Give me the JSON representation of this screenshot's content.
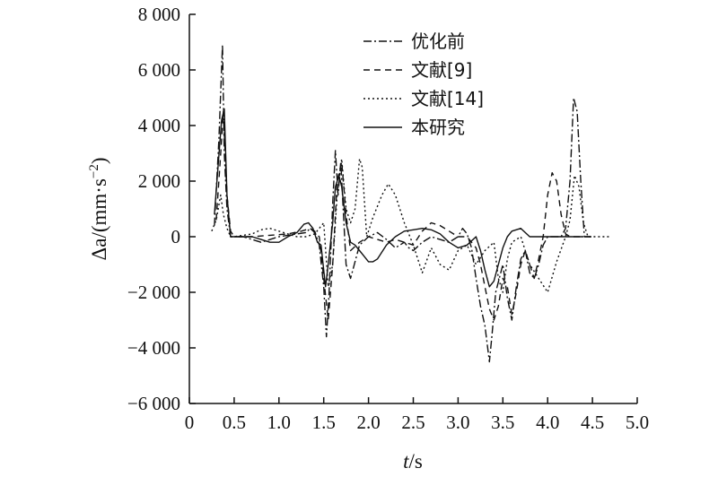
{
  "chart_data": {
    "type": "line",
    "xlabel_italic": "t",
    "xlabel_unit": "/s",
    "ylabel_symbol": "Δa",
    "ylabel_unit": "/(mm·s",
    "ylabel_exp": "−2",
    "ylabel_close": ")",
    "xlim": [
      0,
      5.0
    ],
    "ylim": [
      -6000,
      8000
    ],
    "xticks": [
      0,
      0.5,
      1.0,
      1.5,
      2.0,
      2.5,
      3.0,
      3.5,
      4.0,
      4.5,
      5.0
    ],
    "xtick_labels": [
      "0",
      "0.5",
      "1.0",
      "1.5",
      "2.0",
      "2.5",
      "3.0",
      "3.5",
      "4.0",
      "4.5",
      "5.0"
    ],
    "yticks": [
      -6000,
      -4000,
      -2000,
      0,
      2000,
      4000,
      6000,
      8000
    ],
    "ytick_labels": [
      "−6 000",
      "−4 000",
      "−2 000",
      "0",
      "2 000",
      "4 000",
      "6 000",
      "8 000"
    ],
    "grid": false,
    "legend_position": "top-right",
    "series": [
      {
        "name": "优化前",
        "dash": "9,3,2,3",
        "x": [
          0.28,
          0.33,
          0.37,
          0.39,
          0.42,
          0.46,
          0.5,
          0.6,
          0.8,
          1.0,
          1.1,
          1.2,
          1.3,
          1.35,
          1.4,
          1.45,
          1.5,
          1.53,
          1.56,
          1.6,
          1.63,
          1.66,
          1.69,
          1.72,
          1.75,
          1.8,
          1.9,
          2.0,
          2.1,
          2.2,
          2.3,
          2.4,
          2.45,
          2.5,
          2.6,
          2.7,
          2.8,
          2.9,
          3.0,
          3.05,
          3.1,
          3.15,
          3.2,
          3.25,
          3.3,
          3.35,
          3.38,
          3.42,
          3.46,
          3.5,
          3.55,
          3.6,
          3.65,
          3.7,
          3.75,
          3.8,
          3.85,
          3.9,
          3.95,
          4.0,
          4.05,
          4.1,
          4.15,
          4.2,
          4.25,
          4.29,
          4.33,
          4.37,
          4.41,
          4.45,
          4.5
        ],
        "y": [
          400,
          3500,
          6900,
          3000,
          1000,
          0,
          0,
          0,
          -200,
          0,
          50,
          100,
          150,
          300,
          200,
          -300,
          -1800,
          -3600,
          -2000,
          1200,
          3100,
          1500,
          2700,
          800,
          -1000,
          -1500,
          -300,
          0,
          150,
          -100,
          -400,
          -200,
          -400,
          -500,
          -200,
          0,
          -100,
          -200,
          0,
          300,
          100,
          -400,
          -1500,
          -2500,
          -3200,
          -4500,
          -3500,
          -2000,
          -1500,
          -1000,
          -2200,
          -3000,
          -1800,
          -800,
          -500,
          -1300,
          -1500,
          -1000,
          -300,
          0,
          0,
          0,
          0,
          300,
          2000,
          5000,
          4500,
          2000,
          0,
          0,
          0
        ]
      },
      {
        "name": "文献[9]",
        "dash": "7,5",
        "x": [
          0.3,
          0.34,
          0.38,
          0.42,
          0.46,
          0.5,
          0.7,
          0.9,
          1.1,
          1.25,
          1.35,
          1.45,
          1.5,
          1.55,
          1.6,
          1.65,
          1.7,
          1.75,
          1.8,
          1.9,
          2.0,
          2.1,
          2.2,
          2.3,
          2.4,
          2.5,
          2.6,
          2.7,
          2.8,
          2.9,
          3.0,
          3.1,
          3.2,
          3.25,
          3.3,
          3.35,
          3.4,
          3.45,
          3.5,
          3.55,
          3.6,
          3.65,
          3.7,
          3.75,
          3.8,
          3.85,
          3.9,
          3.95,
          4.0,
          4.05,
          4.1,
          4.15,
          4.2,
          4.25,
          4.3,
          4.35,
          4.4,
          4.45,
          4.5
        ],
        "y": [
          600,
          2500,
          4500,
          1500,
          200,
          0,
          0,
          50,
          100,
          200,
          300,
          0,
          -1500,
          -3000,
          -1000,
          2000,
          2700,
          800,
          -500,
          -200,
          0,
          -100,
          -200,
          -100,
          -200,
          -300,
          200,
          500,
          400,
          200,
          0,
          0,
          -400,
          -1000,
          -1800,
          -2600,
          -3000,
          -2500,
          -1500,
          -1800,
          -2800,
          -2000,
          -1000,
          -500,
          -1000,
          -1500,
          -800,
          0,
          1500,
          2300,
          2000,
          800,
          100,
          0,
          0,
          0,
          0,
          0,
          0
        ]
      },
      {
        "name": "文献[14]",
        "dash": "2,3",
        "x": [
          0.25,
          0.3,
          0.35,
          0.38,
          0.42,
          0.46,
          0.5,
          0.7,
          0.8,
          0.9,
          1.0,
          1.1,
          1.2,
          1.3,
          1.4,
          1.45,
          1.5,
          1.55,
          1.6,
          1.65,
          1.7,
          1.75,
          1.8,
          1.85,
          1.9,
          1.93,
          1.98,
          2.05,
          2.15,
          2.22,
          2.3,
          2.4,
          2.5,
          2.55,
          2.6,
          2.7,
          2.8,
          2.9,
          3.0,
          3.1,
          3.2,
          3.3,
          3.4,
          3.45,
          3.5,
          3.55,
          3.6,
          3.7,
          3.8,
          3.9,
          4.0,
          4.1,
          4.2,
          4.25,
          4.3,
          4.35,
          4.4,
          4.45,
          4.5,
          4.6,
          4.7
        ],
        "y": [
          200,
          600,
          1500,
          800,
          300,
          0,
          0,
          100,
          250,
          300,
          200,
          100,
          0,
          0,
          100,
          300,
          500,
          -1800,
          -1000,
          1500,
          2800,
          1000,
          500,
          1000,
          2800,
          2500,
          0,
          700,
          1500,
          1900,
          1500,
          500,
          -300,
          -800,
          -1300,
          -400,
          -1000,
          -1200,
          -500,
          -300,
          -1000,
          -500,
          -200,
          -1500,
          -2000,
          -800,
          -200,
          0,
          -1000,
          -1500,
          -2000,
          -900,
          0,
          600,
          2200,
          1800,
          500,
          0,
          0,
          0,
          0
        ]
      },
      {
        "name": "本研究",
        "dash": "",
        "x": [
          0.28,
          0.32,
          0.36,
          0.39,
          0.42,
          0.46,
          0.5,
          0.6,
          0.7,
          0.8,
          0.9,
          1.0,
          1.1,
          1.2,
          1.28,
          1.33,
          1.38,
          1.43,
          1.47,
          1.52,
          1.55,
          1.6,
          1.63,
          1.67,
          1.7,
          1.75,
          1.8,
          1.85,
          1.9,
          1.95,
          2.0,
          2.05,
          2.1,
          2.2,
          2.3,
          2.4,
          2.5,
          2.6,
          2.7,
          2.8,
          2.9,
          3.0,
          3.1,
          3.2,
          3.25,
          3.3,
          3.35,
          3.4,
          3.45,
          3.5,
          3.55,
          3.6,
          3.7,
          3.8,
          3.9,
          4.0,
          4.1,
          4.2,
          4.3,
          4.4
        ],
        "y": [
          800,
          2500,
          4200,
          4600,
          1500,
          0,
          0,
          0,
          0,
          -100,
          -200,
          -200,
          0,
          150,
          450,
          500,
          300,
          -200,
          -300,
          -1800,
          -1000,
          500,
          1800,
          2200,
          1800,
          500,
          -200,
          -300,
          -500,
          -700,
          -900,
          -900,
          -800,
          -300,
          0,
          200,
          250,
          300,
          250,
          100,
          -200,
          -400,
          -300,
          0,
          -500,
          -1200,
          -1800,
          -1600,
          -1000,
          -400,
          0,
          200,
          300,
          0,
          0,
          0,
          0,
          0,
          0,
          0
        ]
      }
    ]
  }
}
